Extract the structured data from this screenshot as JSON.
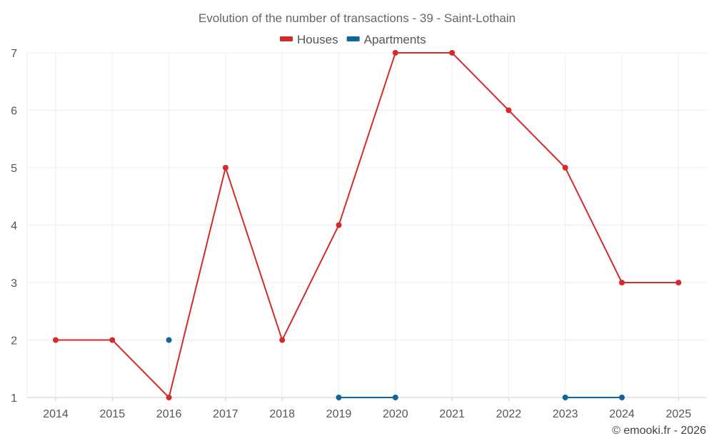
{
  "chart_data": {
    "type": "line",
    "title": "Evolution of the number of transactions - 39 - Saint-Lothain",
    "categories": [
      "2014",
      "2015",
      "2016",
      "2017",
      "2018",
      "2019",
      "2020",
      "2021",
      "2022",
      "2023",
      "2024",
      "2025"
    ],
    "series": [
      {
        "name": "Houses",
        "color": "#d42a2a",
        "values": [
          2,
          2,
          1,
          5,
          2,
          4,
          7,
          7,
          6,
          5,
          3,
          3
        ]
      },
      {
        "name": "Apartments",
        "color": "#0f6699",
        "values": [
          null,
          null,
          2,
          null,
          null,
          1,
          1,
          null,
          null,
          1,
          1,
          null
        ]
      }
    ],
    "y_ticks": [
      1,
      2,
      3,
      4,
      5,
      6,
      7
    ],
    "ylim": [
      1,
      7
    ],
    "grid": true,
    "legend_position": "top-center",
    "xlabel": "",
    "ylabel": ""
  },
  "credit": "© emooki.fr - 2026"
}
